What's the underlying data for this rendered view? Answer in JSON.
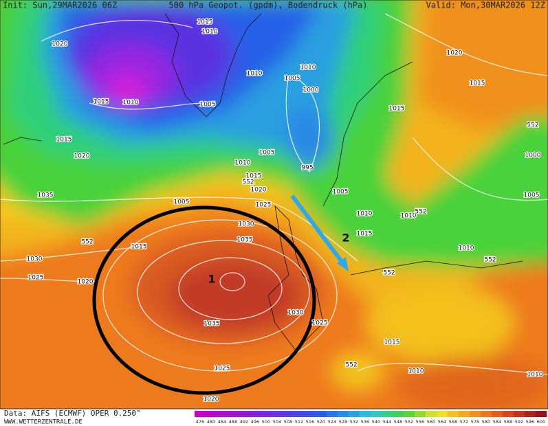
{
  "header": {
    "init": "Init: Sun,29MAR2026 06Z",
    "title": "500 hPa Geopot. (gpdm), Bodendruck (hPa)",
    "valid": "Valid: Mon,30MAR2026 12Z"
  },
  "footer": {
    "source": "Data: AIFS (ECMWF) OPER 0.250°",
    "website": "WWW.WETTERZENTRALE.DE"
  },
  "map": {
    "isobar_labels": [
      1015,
      1010,
      1020,
      1010,
      1005,
      1010,
      1000,
      1015,
      1010,
      1005,
      1015,
      1020,
      1015,
      552,
      1015,
      1020,
      1005,
      1010,
      995,
      1015,
      552,
      1020,
      1000,
      1035,
      1005,
      1025,
      1005,
      1010,
      1010,
      552,
      1005,
      1030,
      1015,
      1035,
      552,
      1015,
      1010,
      1030,
      552,
      1025,
      1020,
      552,
      1030,
      1025,
      1035,
      1015,
      552,
      1010,
      1025,
      1010,
      1020
    ],
    "markers": [
      1,
      2
    ]
  },
  "colorbar": {
    "labels": [
      476,
      480,
      484,
      488,
      492,
      496,
      500,
      504,
      508,
      512,
      516,
      520,
      524,
      528,
      532,
      536,
      540,
      544,
      548,
      552,
      556,
      560,
      564,
      568,
      572,
      576,
      580,
      584,
      588,
      592,
      596,
      600
    ]
  }
}
